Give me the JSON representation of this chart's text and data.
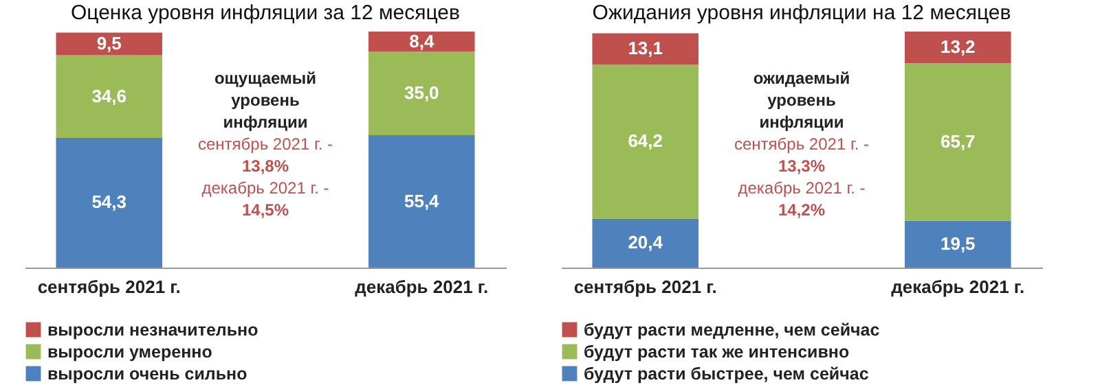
{
  "chart_data": [
    {
      "type": "bar",
      "stacked": true,
      "title": "Оценка уровня инфляции за 12 месяцев",
      "categories": [
        "сентябрь 2021 г.",
        "декабрь 2021 г."
      ],
      "legend": "bottom",
      "series": [
        {
          "name": "выросли очень сильно",
          "color": "#4f81bd",
          "values": [
            54.3,
            55.4
          ],
          "value_labels": [
            "54,3",
            "55,4"
          ]
        },
        {
          "name": "выросли умеренно",
          "color": "#9bbb59",
          "values": [
            34.6,
            35.0
          ],
          "value_labels": [
            "34,6",
            "35,0"
          ]
        },
        {
          "name": "выросли незначительно",
          "color": "#c0504d",
          "values": [
            9.5,
            8.4
          ],
          "value_labels": [
            "9,5",
            "8,4"
          ]
        }
      ],
      "annotations": [
        "ощущаемый уровень инфляции",
        "сентябрь 2021 г. -",
        "13,8%",
        "декабрь 2021 г. -",
        "14,5%"
      ]
    },
    {
      "type": "bar",
      "stacked": true,
      "title": "Ожидания уровня инфляции на 12 месяцев",
      "categories": [
        "сентябрь 2021 г.",
        "декабрь 2021 г."
      ],
      "legend": "bottom",
      "series": [
        {
          "name": "будут расти быстрее, чем сейчас",
          "color": "#4f81bd",
          "values": [
            20.4,
            19.5
          ],
          "value_labels": [
            "20,4",
            "19,5"
          ]
        },
        {
          "name": "будут расти так же интенсивно",
          "color": "#9bbb59",
          "values": [
            64.2,
            65.7
          ],
          "value_labels": [
            "64,2",
            "65,7"
          ]
        },
        {
          "name": "будут расти медленне, чем сейчас",
          "color": "#c0504d",
          "values": [
            13.1,
            13.2
          ],
          "value_labels": [
            "13,1",
            "13,2"
          ]
        }
      ],
      "annotations": [
        "ожидаемый уровень инфляции",
        "сентябрь 2021 г. -",
        "13,3%",
        "декабрь 2021 г. -",
        "14,2%"
      ]
    }
  ]
}
